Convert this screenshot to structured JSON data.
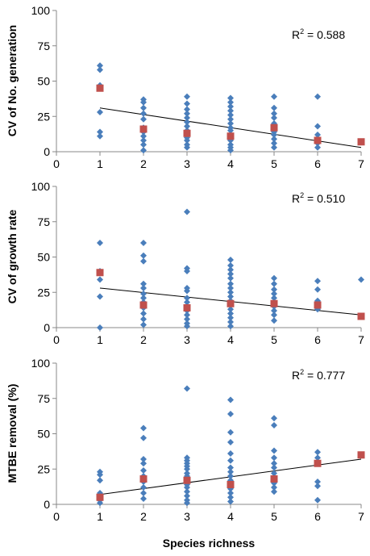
{
  "chart_data": [
    {
      "type": "scatter",
      "ylabel": "CV of No. generation",
      "xlabel": "",
      "xlim": [
        0,
        7
      ],
      "ylim": [
        0,
        100
      ],
      "xticks": [
        "0",
        "1",
        "2",
        "3",
        "4",
        "5",
        "6",
        "7"
      ],
      "yticks": [
        "0",
        "25",
        "50",
        "75",
        "100"
      ],
      "annotation": {
        "prefix": "R",
        "sup": "2",
        "suffix": " = 0.588"
      },
      "colors": {
        "points": "#4a7ebb",
        "means": "#c0504d",
        "trend": "#000000"
      },
      "points": [
        [
          1,
          61
        ],
        [
          1,
          58
        ],
        [
          1,
          47
        ],
        [
          1,
          45
        ],
        [
          1,
          28
        ],
        [
          1,
          14
        ],
        [
          1,
          11
        ],
        [
          2,
          37
        ],
        [
          2,
          35
        ],
        [
          2,
          31
        ],
        [
          2,
          27
        ],
        [
          2,
          23
        ],
        [
          2,
          17
        ],
        [
          2,
          14
        ],
        [
          2,
          11
        ],
        [
          2,
          8
        ],
        [
          2,
          5
        ],
        [
          2,
          1
        ],
        [
          3,
          39
        ],
        [
          3,
          34
        ],
        [
          3,
          30
        ],
        [
          3,
          27
        ],
        [
          3,
          24
        ],
        [
          3,
          21
        ],
        [
          3,
          18
        ],
        [
          3,
          15
        ],
        [
          3,
          13
        ],
        [
          3,
          10
        ],
        [
          3,
          8
        ],
        [
          3,
          5
        ],
        [
          3,
          3
        ],
        [
          4,
          38
        ],
        [
          4,
          35
        ],
        [
          4,
          32
        ],
        [
          4,
          29
        ],
        [
          4,
          26
        ],
        [
          4,
          23
        ],
        [
          4,
          20
        ],
        [
          4,
          17
        ],
        [
          4,
          15
        ],
        [
          4,
          12
        ],
        [
          4,
          10
        ],
        [
          4,
          8
        ],
        [
          4,
          5
        ],
        [
          4,
          3
        ],
        [
          4,
          1
        ],
        [
          5,
          39
        ],
        [
          5,
          31
        ],
        [
          5,
          27
        ],
        [
          5,
          24
        ],
        [
          5,
          20
        ],
        [
          5,
          17
        ],
        [
          5,
          14
        ],
        [
          5,
          12
        ],
        [
          5,
          9
        ],
        [
          5,
          6
        ],
        [
          5,
          3
        ],
        [
          6,
          39
        ],
        [
          6,
          18
        ],
        [
          6,
          12
        ],
        [
          6,
          9
        ],
        [
          6,
          6
        ],
        [
          6,
          3
        ],
        [
          7,
          7
        ]
      ],
      "means": [
        [
          1,
          45
        ],
        [
          2,
          16
        ],
        [
          3,
          13
        ],
        [
          4,
          11
        ],
        [
          5,
          17
        ],
        [
          6,
          8
        ],
        [
          7,
          7
        ]
      ],
      "trend": [
        [
          1,
          31
        ],
        [
          7,
          3
        ]
      ]
    },
    {
      "type": "scatter",
      "ylabel": "CV of growth rate",
      "xlabel": "",
      "xlim": [
        0,
        7
      ],
      "ylim": [
        0,
        100
      ],
      "xticks": [
        "0",
        "1",
        "2",
        "3",
        "4",
        "5",
        "6",
        "7"
      ],
      "yticks": [
        "0",
        "25",
        "50",
        "75",
        "100"
      ],
      "annotation": {
        "prefix": "R",
        "sup": "2",
        "suffix": " = 0.510"
      },
      "colors": {
        "points": "#4a7ebb",
        "means": "#c0504d",
        "trend": "#000000"
      },
      "points": [
        [
          1,
          60
        ],
        [
          1,
          40
        ],
        [
          1,
          34
        ],
        [
          1,
          22
        ],
        [
          1,
          0
        ],
        [
          2,
          60
        ],
        [
          2,
          51
        ],
        [
          2,
          47
        ],
        [
          2,
          31
        ],
        [
          2,
          28
        ],
        [
          2,
          24
        ],
        [
          2,
          21
        ],
        [
          2,
          18
        ],
        [
          2,
          14
        ],
        [
          2,
          10
        ],
        [
          2,
          6
        ],
        [
          2,
          2
        ],
        [
          3,
          82
        ],
        [
          3,
          42
        ],
        [
          3,
          40
        ],
        [
          3,
          28
        ],
        [
          3,
          26
        ],
        [
          3,
          21
        ],
        [
          3,
          18
        ],
        [
          3,
          15
        ],
        [
          3,
          12
        ],
        [
          3,
          9
        ],
        [
          3,
          6
        ],
        [
          3,
          3
        ],
        [
          3,
          1
        ],
        [
          4,
          48
        ],
        [
          4,
          44
        ],
        [
          4,
          41
        ],
        [
          4,
          38
        ],
        [
          4,
          35
        ],
        [
          4,
          31
        ],
        [
          4,
          28
        ],
        [
          4,
          25
        ],
        [
          4,
          22
        ],
        [
          4,
          19
        ],
        [
          4,
          16
        ],
        [
          4,
          13
        ],
        [
          4,
          10
        ],
        [
          4,
          7
        ],
        [
          4,
          4
        ],
        [
          4,
          1
        ],
        [
          5,
          35
        ],
        [
          5,
          31
        ],
        [
          5,
          27
        ],
        [
          5,
          24
        ],
        [
          5,
          21
        ],
        [
          5,
          18
        ],
        [
          5,
          15
        ],
        [
          5,
          12
        ],
        [
          5,
          9
        ],
        [
          5,
          5
        ],
        [
          6,
          33
        ],
        [
          6,
          27
        ],
        [
          6,
          19
        ],
        [
          6,
          15
        ],
        [
          6,
          13
        ],
        [
          7,
          34
        ]
      ],
      "means": [
        [
          1,
          39
        ],
        [
          2,
          16
        ],
        [
          3,
          14
        ],
        [
          4,
          17
        ],
        [
          5,
          17
        ],
        [
          6,
          16
        ],
        [
          7,
          8
        ]
      ],
      "trend": [
        [
          1,
          28
        ],
        [
          7,
          9
        ]
      ]
    },
    {
      "type": "scatter",
      "ylabel": "MTBE removal (%)",
      "xlabel": "Species richness",
      "xlim": [
        0,
        7
      ],
      "ylim": [
        0,
        100
      ],
      "xticks": [
        "0",
        "1",
        "2",
        "3",
        "4",
        "5",
        "6",
        "7"
      ],
      "yticks": [
        "0",
        "25",
        "50",
        "75",
        "100"
      ],
      "annotation": {
        "prefix": "R",
        "sup": "2",
        "suffix": " = 0.777"
      },
      "colors": {
        "points": "#4a7ebb",
        "means": "#c0504d",
        "trend": "#000000"
      },
      "points": [
        [
          1,
          23
        ],
        [
          1,
          21
        ],
        [
          1,
          17
        ],
        [
          1,
          8
        ],
        [
          1,
          3
        ],
        [
          1,
          1
        ],
        [
          2,
          54
        ],
        [
          2,
          47
        ],
        [
          2,
          32
        ],
        [
          2,
          29
        ],
        [
          2,
          24
        ],
        [
          2,
          20
        ],
        [
          2,
          16
        ],
        [
          2,
          12
        ],
        [
          2,
          8
        ],
        [
          2,
          4
        ],
        [
          3,
          82
        ],
        [
          3,
          33
        ],
        [
          3,
          31
        ],
        [
          3,
          29
        ],
        [
          3,
          27
        ],
        [
          3,
          25
        ],
        [
          3,
          22
        ],
        [
          3,
          20
        ],
        [
          3,
          17
        ],
        [
          3,
          14
        ],
        [
          3,
          12
        ],
        [
          3,
          9
        ],
        [
          3,
          6
        ],
        [
          3,
          3
        ],
        [
          3,
          1
        ],
        [
          4,
          74
        ],
        [
          4,
          64
        ],
        [
          4,
          51
        ],
        [
          4,
          44
        ],
        [
          4,
          36
        ],
        [
          4,
          31
        ],
        [
          4,
          26
        ],
        [
          4,
          23
        ],
        [
          4,
          20
        ],
        [
          4,
          17
        ],
        [
          4,
          14
        ],
        [
          4,
          11
        ],
        [
          4,
          8
        ],
        [
          4,
          5
        ],
        [
          4,
          2
        ],
        [
          5,
          61
        ],
        [
          5,
          56
        ],
        [
          5,
          38
        ],
        [
          5,
          33
        ],
        [
          5,
          29
        ],
        [
          5,
          26
        ],
        [
          5,
          22
        ],
        [
          5,
          19
        ],
        [
          5,
          15
        ],
        [
          5,
          12
        ],
        [
          5,
          9
        ],
        [
          6,
          37
        ],
        [
          6,
          33
        ],
        [
          6,
          29
        ],
        [
          6,
          16
        ],
        [
          6,
          13
        ],
        [
          6,
          3
        ],
        [
          7,
          35
        ]
      ],
      "means": [
        [
          1,
          5
        ],
        [
          2,
          18
        ],
        [
          3,
          17
        ],
        [
          4,
          14
        ],
        [
          5,
          18
        ],
        [
          6,
          29
        ],
        [
          7,
          35
        ]
      ],
      "trend": [
        [
          1,
          7
        ],
        [
          7,
          32
        ]
      ]
    }
  ]
}
